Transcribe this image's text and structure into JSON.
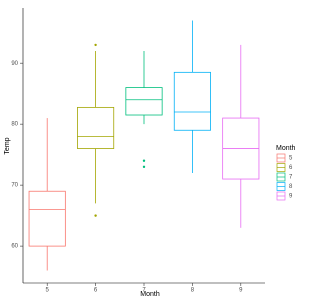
{
  "chart_data": {
    "type": "boxplot",
    "x_label": "Month",
    "y_label": "Temp",
    "legend_title": "Month",
    "categories": [
      "5",
      "6",
      "7",
      "8",
      "9"
    ],
    "colors": [
      "#F8766D",
      "#A3A500",
      "#00BF7D",
      "#00B0F6",
      "#E76BF3"
    ],
    "boxes": [
      {
        "min": 56,
        "q1": 60,
        "median": 66,
        "q3": 69,
        "max": 81,
        "outliers": []
      },
      {
        "min": 67,
        "q1": 76,
        "median": 78,
        "q3": 82.75,
        "max": 92,
        "outliers": [
          65,
          93
        ]
      },
      {
        "min": 80,
        "q1": 81.5,
        "median": 84,
        "q3": 86,
        "max": 92,
        "outliers": [
          73,
          74
        ]
      },
      {
        "min": 72,
        "q1": 79,
        "median": 82,
        "q3": 88.5,
        "max": 97,
        "outliers": []
      },
      {
        "min": 63,
        "q1": 71,
        "median": 76,
        "q3": 81,
        "max": 93,
        "outliers": []
      }
    ],
    "ylim": [
      53.95,
      99.05
    ],
    "yticks": [
      60,
      70,
      80,
      90
    ],
    "legend": "right"
  }
}
